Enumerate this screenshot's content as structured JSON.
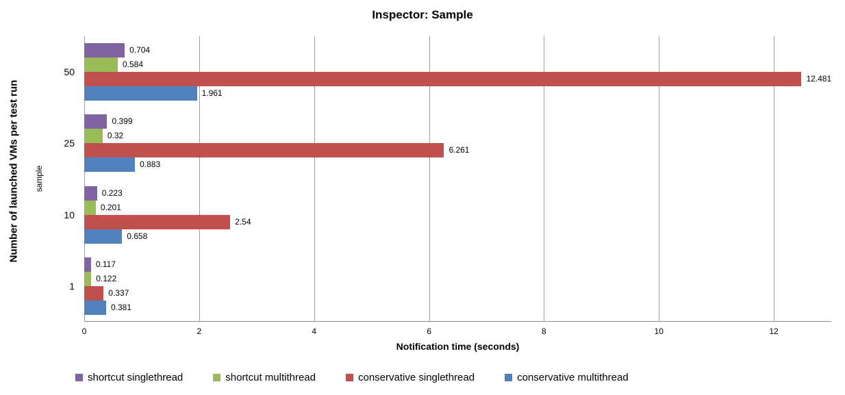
{
  "chart_data": {
    "type": "bar",
    "orientation": "horizontal",
    "title": "Inspector: Sample",
    "xlabel": "Notification time (seconds)",
    "ylabel": "Number of launched VMs per test run",
    "ylabel_secondary": "sample",
    "categories": [
      "50",
      "25",
      "10",
      "1"
    ],
    "series": [
      {
        "name": "shortcut singlethread",
        "color": "#8064A2",
        "values": [
          0.704,
          0.399,
          0.223,
          0.117
        ]
      },
      {
        "name": "shortcut multithread",
        "color": "#9BBB59",
        "values": [
          0.584,
          0.32,
          0.201,
          0.122
        ]
      },
      {
        "name": "conservative singlethread",
        "color": "#C0504D",
        "values": [
          12.481,
          6.261,
          2.54,
          0.337
        ]
      },
      {
        "name": "conservative multithread",
        "color": "#4F81BD",
        "values": [
          1.961,
          0.883,
          0.658,
          0.381
        ]
      }
    ],
    "xlim": [
      0,
      13
    ],
    "xticks": [
      0,
      2,
      4,
      6,
      8,
      10,
      12
    ],
    "grid": "vertical",
    "legend_position": "bottom",
    "axis_color": "#8c8c8c",
    "gridline_color": "#9d9d9d",
    "data_labels_shown": true
  }
}
